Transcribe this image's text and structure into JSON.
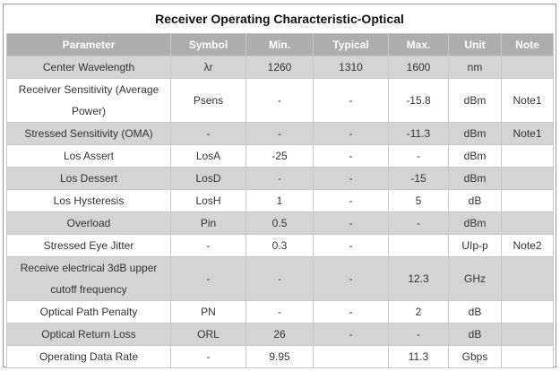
{
  "title": "Receiver Operating Characteristic-Optical",
  "columns": [
    "Parameter",
    "Symbol",
    "Min.",
    "Typical",
    "Max.",
    "Unit",
    "Note"
  ],
  "rows": [
    {
      "cells": [
        "Center Wavelength",
        "λr",
        "1260",
        "1310",
        "1600",
        "nm",
        ""
      ],
      "shaded": true
    },
    {
      "cells": [
        "Receiver Sensitivity (Average Power)",
        "Psens",
        "-",
        "-",
        "-15.8",
        "dBm",
        "Note1"
      ],
      "shaded": false
    },
    {
      "cells": [
        "Stressed Sensitivity (OMA)",
        "-",
        "-",
        "-",
        "-11.3",
        "dBm",
        "Note1"
      ],
      "shaded": true
    },
    {
      "cells": [
        "Los Assert",
        "LosA",
        "-25",
        "-",
        "-",
        "dBm",
        ""
      ],
      "shaded": false
    },
    {
      "cells": [
        "Los Dessert",
        "LosD",
        "-",
        "-",
        "-15",
        "dBm",
        ""
      ],
      "shaded": true
    },
    {
      "cells": [
        "Los Hysteresis",
        "LosH",
        "1",
        "-",
        "5",
        "dB",
        ""
      ],
      "shaded": false
    },
    {
      "cells": [
        "Overload",
        "Pin",
        "0.5",
        "-",
        "-",
        "dBm",
        ""
      ],
      "shaded": true
    },
    {
      "cells": [
        "Stressed Eye Jitter",
        "-",
        "0.3",
        "-",
        "",
        "UIp-p",
        "Note2"
      ],
      "shaded": false
    },
    {
      "cells": [
        "Receive electrical 3dB upper cutoff frequency",
        "-",
        "-",
        "-",
        "12.3",
        "GHz",
        ""
      ],
      "shaded": true
    },
    {
      "cells": [
        "Optical Path Penalty",
        "PN",
        "-",
        "-",
        "2",
        "dB",
        ""
      ],
      "shaded": false
    },
    {
      "cells": [
        "Optical Return Loss",
        "ORL",
        "26",
        "-",
        "-",
        "dB",
        ""
      ],
      "shaded": true
    },
    {
      "cells": [
        "Operating Data Rate",
        "-",
        "9.95",
        "",
        "11.3",
        "Gbps",
        ""
      ],
      "shaded": false
    }
  ]
}
